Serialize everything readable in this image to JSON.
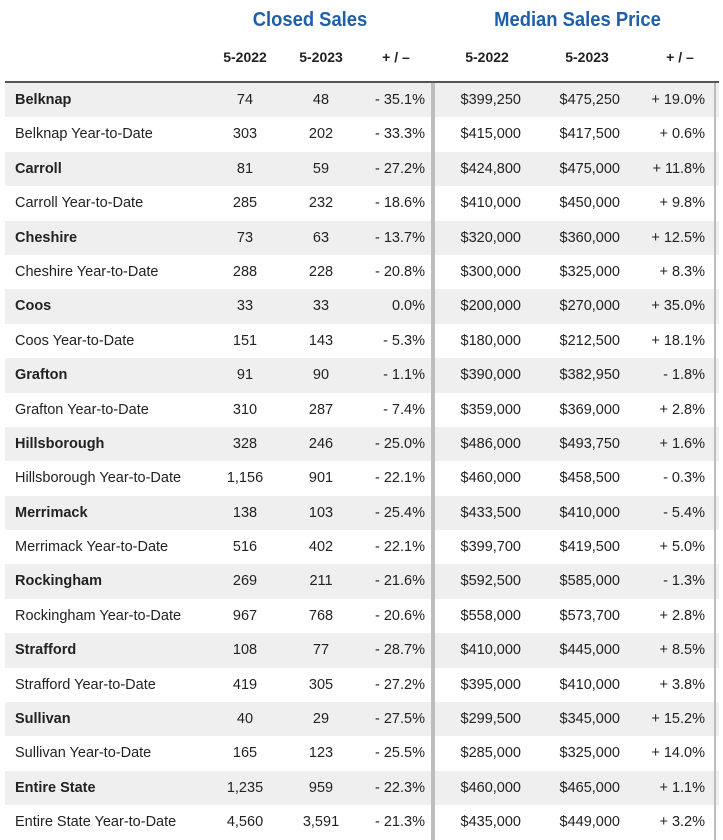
{
  "groups": {
    "closed_sales": "Closed Sales",
    "median_price": "Median Sales Price"
  },
  "headers": [
    "5-2022",
    "5-2023",
    "+ / –",
    "5-2022",
    "5-2023",
    "+ / –"
  ],
  "rows": [
    {
      "name": "Belknap",
      "bold": true,
      "values": [
        "74",
        "48",
        "- 35.1%",
        "$399,250",
        "$475,250",
        "+ 19.0%"
      ]
    },
    {
      "name": "Belknap Year-to-Date",
      "bold": false,
      "values": [
        "303",
        "202",
        "- 33.3%",
        "$415,000",
        "$417,500",
        "+ 0.6%"
      ]
    },
    {
      "name": "Carroll",
      "bold": true,
      "values": [
        "81",
        "59",
        "- 27.2%",
        "$424,800",
        "$475,000",
        "+ 11.8%"
      ]
    },
    {
      "name": "Carroll Year-to-Date",
      "bold": false,
      "values": [
        "285",
        "232",
        "- 18.6%",
        "$410,000",
        "$450,000",
        "+ 9.8%"
      ]
    },
    {
      "name": "Cheshire",
      "bold": true,
      "values": [
        "73",
        "63",
        "- 13.7%",
        "$320,000",
        "$360,000",
        "+ 12.5%"
      ]
    },
    {
      "name": "Cheshire Year-to-Date",
      "bold": false,
      "values": [
        "288",
        "228",
        "- 20.8%",
        "$300,000",
        "$325,000",
        "+ 8.3%"
      ]
    },
    {
      "name": "Coos",
      "bold": true,
      "values": [
        "33",
        "33",
        "0.0%",
        "$200,000",
        "$270,000",
        "+ 35.0%"
      ]
    },
    {
      "name": "Coos Year-to-Date",
      "bold": false,
      "values": [
        "151",
        "143",
        "- 5.3%",
        "$180,000",
        "$212,500",
        "+ 18.1%"
      ]
    },
    {
      "name": "Grafton",
      "bold": true,
      "values": [
        "91",
        "90",
        "- 1.1%",
        "$390,000",
        "$382,950",
        "- 1.8%"
      ]
    },
    {
      "name": "Grafton Year-to-Date",
      "bold": false,
      "values": [
        "310",
        "287",
        "- 7.4%",
        "$359,000",
        "$369,000",
        "+ 2.8%"
      ]
    },
    {
      "name": "Hillsborough",
      "bold": true,
      "values": [
        "328",
        "246",
        "- 25.0%",
        "$486,000",
        "$493,750",
        "+ 1.6%"
      ]
    },
    {
      "name": "Hillsborough Year-to-Date",
      "bold": false,
      "values": [
        "1,156",
        "901",
        "- 22.1%",
        "$460,000",
        "$458,500",
        "- 0.3%"
      ]
    },
    {
      "name": "Merrimack",
      "bold": true,
      "values": [
        "138",
        "103",
        "- 25.4%",
        "$433,500",
        "$410,000",
        "- 5.4%"
      ]
    },
    {
      "name": "Merrimack Year-to-Date",
      "bold": false,
      "values": [
        "516",
        "402",
        "- 22.1%",
        "$399,700",
        "$419,500",
        "+ 5.0%"
      ]
    },
    {
      "name": "Rockingham",
      "bold": true,
      "values": [
        "269",
        "211",
        "- 21.6%",
        "$592,500",
        "$585,000",
        "- 1.3%"
      ]
    },
    {
      "name": "Rockingham Year-to-Date",
      "bold": false,
      "values": [
        "967",
        "768",
        "- 20.6%",
        "$558,000",
        "$573,700",
        "+ 2.8%"
      ]
    },
    {
      "name": "Strafford",
      "bold": true,
      "values": [
        "108",
        "77",
        "- 28.7%",
        "$410,000",
        "$445,000",
        "+ 8.5%"
      ]
    },
    {
      "name": "Strafford Year-to-Date",
      "bold": false,
      "values": [
        "419",
        "305",
        "- 27.2%",
        "$395,000",
        "$410,000",
        "+ 3.8%"
      ]
    },
    {
      "name": "Sullivan",
      "bold": true,
      "values": [
        "40",
        "29",
        "- 27.5%",
        "$299,500",
        "$345,000",
        "+ 15.2%"
      ]
    },
    {
      "name": "Sullivan Year-to-Date",
      "bold": false,
      "values": [
        "165",
        "123",
        "- 25.5%",
        "$285,000",
        "$325,000",
        "+ 14.0%"
      ]
    },
    {
      "name": "Entire State",
      "bold": true,
      "values": [
        "1,235",
        "959",
        "- 22.3%",
        "$460,000",
        "$465,000",
        "+ 1.1%"
      ]
    },
    {
      "name": "Entire State Year-to-Date",
      "bold": false,
      "values": [
        "4,560",
        "3,591",
        "- 21.3%",
        "$435,000",
        "$449,000",
        "+ 3.2%"
      ]
    }
  ]
}
